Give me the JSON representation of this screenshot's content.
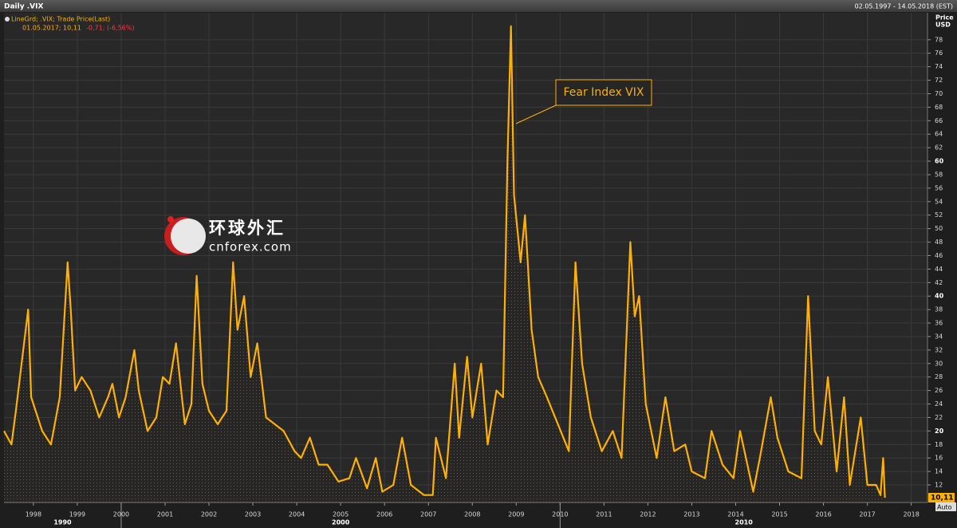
{
  "header": {
    "title": "Daily .VIX",
    "range": "02.05.1997 - 14.05.2018 (EST)"
  },
  "chart_data": {
    "type": "line",
    "legend": {
      "name": "LineGrd; .VIX; Trade Price(Last)",
      "info": "01.05.2017; 10,11",
      "change": "-0,71; (-6,56%)"
    },
    "y_axis_label": [
      "Price",
      "USD"
    ],
    "color": "#ffb000",
    "x": [
      1997.33,
      1997.5,
      1997.6,
      1997.88,
      1997.95,
      1998.2,
      1998.4,
      1998.6,
      1998.78,
      1998.85,
      1998.95,
      1999.1,
      1999.3,
      1999.5,
      1999.7,
      1999.8,
      1999.95,
      2000.1,
      2000.3,
      2000.4,
      2000.6,
      2000.8,
      2000.95,
      2001.1,
      2001.25,
      2001.45,
      2001.6,
      2001.72,
      2001.85,
      2002.0,
      2002.2,
      2002.4,
      2002.55,
      2002.65,
      2002.8,
      2002.95,
      2003.1,
      2003.3,
      2003.5,
      2003.7,
      2003.95,
      2004.1,
      2004.3,
      2004.5,
      2004.7,
      2004.95,
      2005.2,
      2005.35,
      2005.6,
      2005.8,
      2005.95,
      2006.2,
      2006.4,
      2006.6,
      2006.9,
      2007.1,
      2007.17,
      2007.4,
      2007.6,
      2007.7,
      2007.88,
      2008.0,
      2008.2,
      2008.35,
      2008.55,
      2008.7,
      2008.8,
      2008.88,
      2008.95,
      2009.1,
      2009.2,
      2009.35,
      2009.5,
      2009.7,
      2009.95,
      2010.2,
      2010.35,
      2010.5,
      2010.7,
      2010.95,
      2011.2,
      2011.4,
      2011.6,
      2011.7,
      2011.8,
      2011.95,
      2012.2,
      2012.4,
      2012.6,
      2012.85,
      2013.0,
      2013.3,
      2013.45,
      2013.7,
      2013.95,
      2014.1,
      2014.4,
      2014.55,
      2014.8,
      2014.95,
      2015.2,
      2015.5,
      2015.65,
      2015.8,
      2015.95,
      2016.1,
      2016.3,
      2016.47,
      2016.6,
      2016.85,
      2017.0,
      2017.2,
      2017.3,
      2017.36,
      2017.4
    ],
    "values": [
      20,
      18,
      23,
      38,
      25,
      20,
      18,
      25,
      45,
      38,
      26,
      28,
      26,
      22,
      25,
      27,
      22,
      25,
      32,
      26,
      20,
      22,
      28,
      27,
      33,
      21,
      24,
      43,
      27,
      23,
      21,
      23,
      45,
      35,
      40,
      28,
      33,
      22,
      21,
      20,
      17,
      16,
      19,
      15,
      15,
      12.5,
      13,
      16,
      11.5,
      16,
      11,
      12,
      19,
      12,
      10.5,
      10.5,
      19,
      13,
      30,
      19,
      31,
      22,
      30,
      18,
      26,
      25,
      60,
      80,
      55,
      45,
      52,
      35,
      28,
      25,
      21,
      17,
      45,
      30,
      22,
      17,
      20,
      16,
      48,
      37,
      40,
      24,
      16,
      25,
      17,
      18,
      14,
      13,
      20,
      15,
      13,
      20,
      11,
      16,
      25,
      19,
      14,
      13,
      40,
      20,
      18,
      28,
      14,
      25,
      12,
      22,
      12,
      12,
      10.5,
      16,
      10.11
    ],
    "xlim": [
      1997.33,
      2018.37
    ],
    "xticks": [
      1998,
      1999,
      2000,
      2001,
      2002,
      2003,
      2004,
      2005,
      2006,
      2007,
      2008,
      2009,
      2010,
      2011,
      2012,
      2013,
      2014,
      2015,
      2016,
      2017,
      2018
    ],
    "decades": [
      1990,
      2000,
      2010
    ],
    "ylim": [
      9.4,
      82
    ],
    "yticks": [
      12,
      14,
      16,
      18,
      20,
      22,
      24,
      26,
      28,
      30,
      32,
      34,
      36,
      38,
      40,
      42,
      44,
      46,
      48,
      50,
      52,
      54,
      56,
      58,
      60,
      62,
      64,
      66,
      68,
      70,
      72,
      74,
      76,
      78
    ],
    "grid": true,
    "annotation": "Fear Index VIX",
    "last_price": {
      "value": 10.11,
      "label": "10,11"
    },
    "scale_mode": "Auto"
  },
  "watermark": {
    "title": "环球外汇",
    "site": "cnforex.com"
  }
}
